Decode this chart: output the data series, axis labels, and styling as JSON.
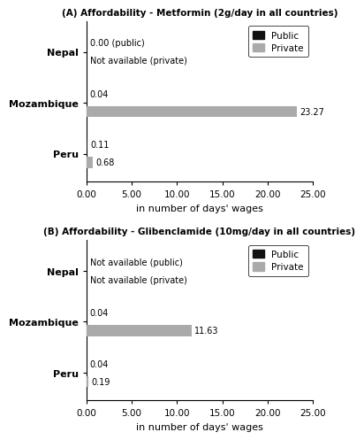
{
  "panel_A": {
    "title": "(A) Affordability - Metformin (2g/day in all countries)",
    "countries": [
      "Nepal",
      "Mozambique",
      "Peru"
    ],
    "public_values": [
      0.0,
      0.04,
      0.11
    ],
    "private_values": [
      null,
      23.27,
      0.68
    ],
    "nepal_annotation_public": "0.00 (public)",
    "nepal_annotation_private": "Not available (private)",
    "mozambique_public_label": "0.04",
    "mozambique_private_label": "23.27",
    "peru_public_label": "0.11",
    "peru_private_label": "0.68",
    "xlim": [
      0,
      25
    ],
    "xticks": [
      0.0,
      5.0,
      10.0,
      15.0,
      20.0,
      25.0
    ],
    "xlabel": "in number of days' wages"
  },
  "panel_B": {
    "title": "(B) Affordability - Glibenclamide (10mg/day in all countries)",
    "countries": [
      "Nepal",
      "Mozambique",
      "Peru"
    ],
    "public_values": [
      null,
      0.04,
      0.04
    ],
    "private_values": [
      null,
      11.63,
      0.19
    ],
    "nepal_annotation_public": "Not available (public)",
    "nepal_annotation_private": "Not available (private)",
    "mozambique_public_label": "0.04",
    "mozambique_private_label": "11.63",
    "peru_public_label": "0.04",
    "peru_private_label": "0.19",
    "xlim": [
      0,
      25
    ],
    "xticks": [
      0.0,
      5.0,
      10.0,
      15.0,
      20.0,
      25.0
    ],
    "xlabel": "in number of days' wages"
  },
  "bar_height": 0.22,
  "public_color": "#111111",
  "private_color": "#aaaaaa",
  "legend_public": "Public",
  "legend_private": "Private"
}
